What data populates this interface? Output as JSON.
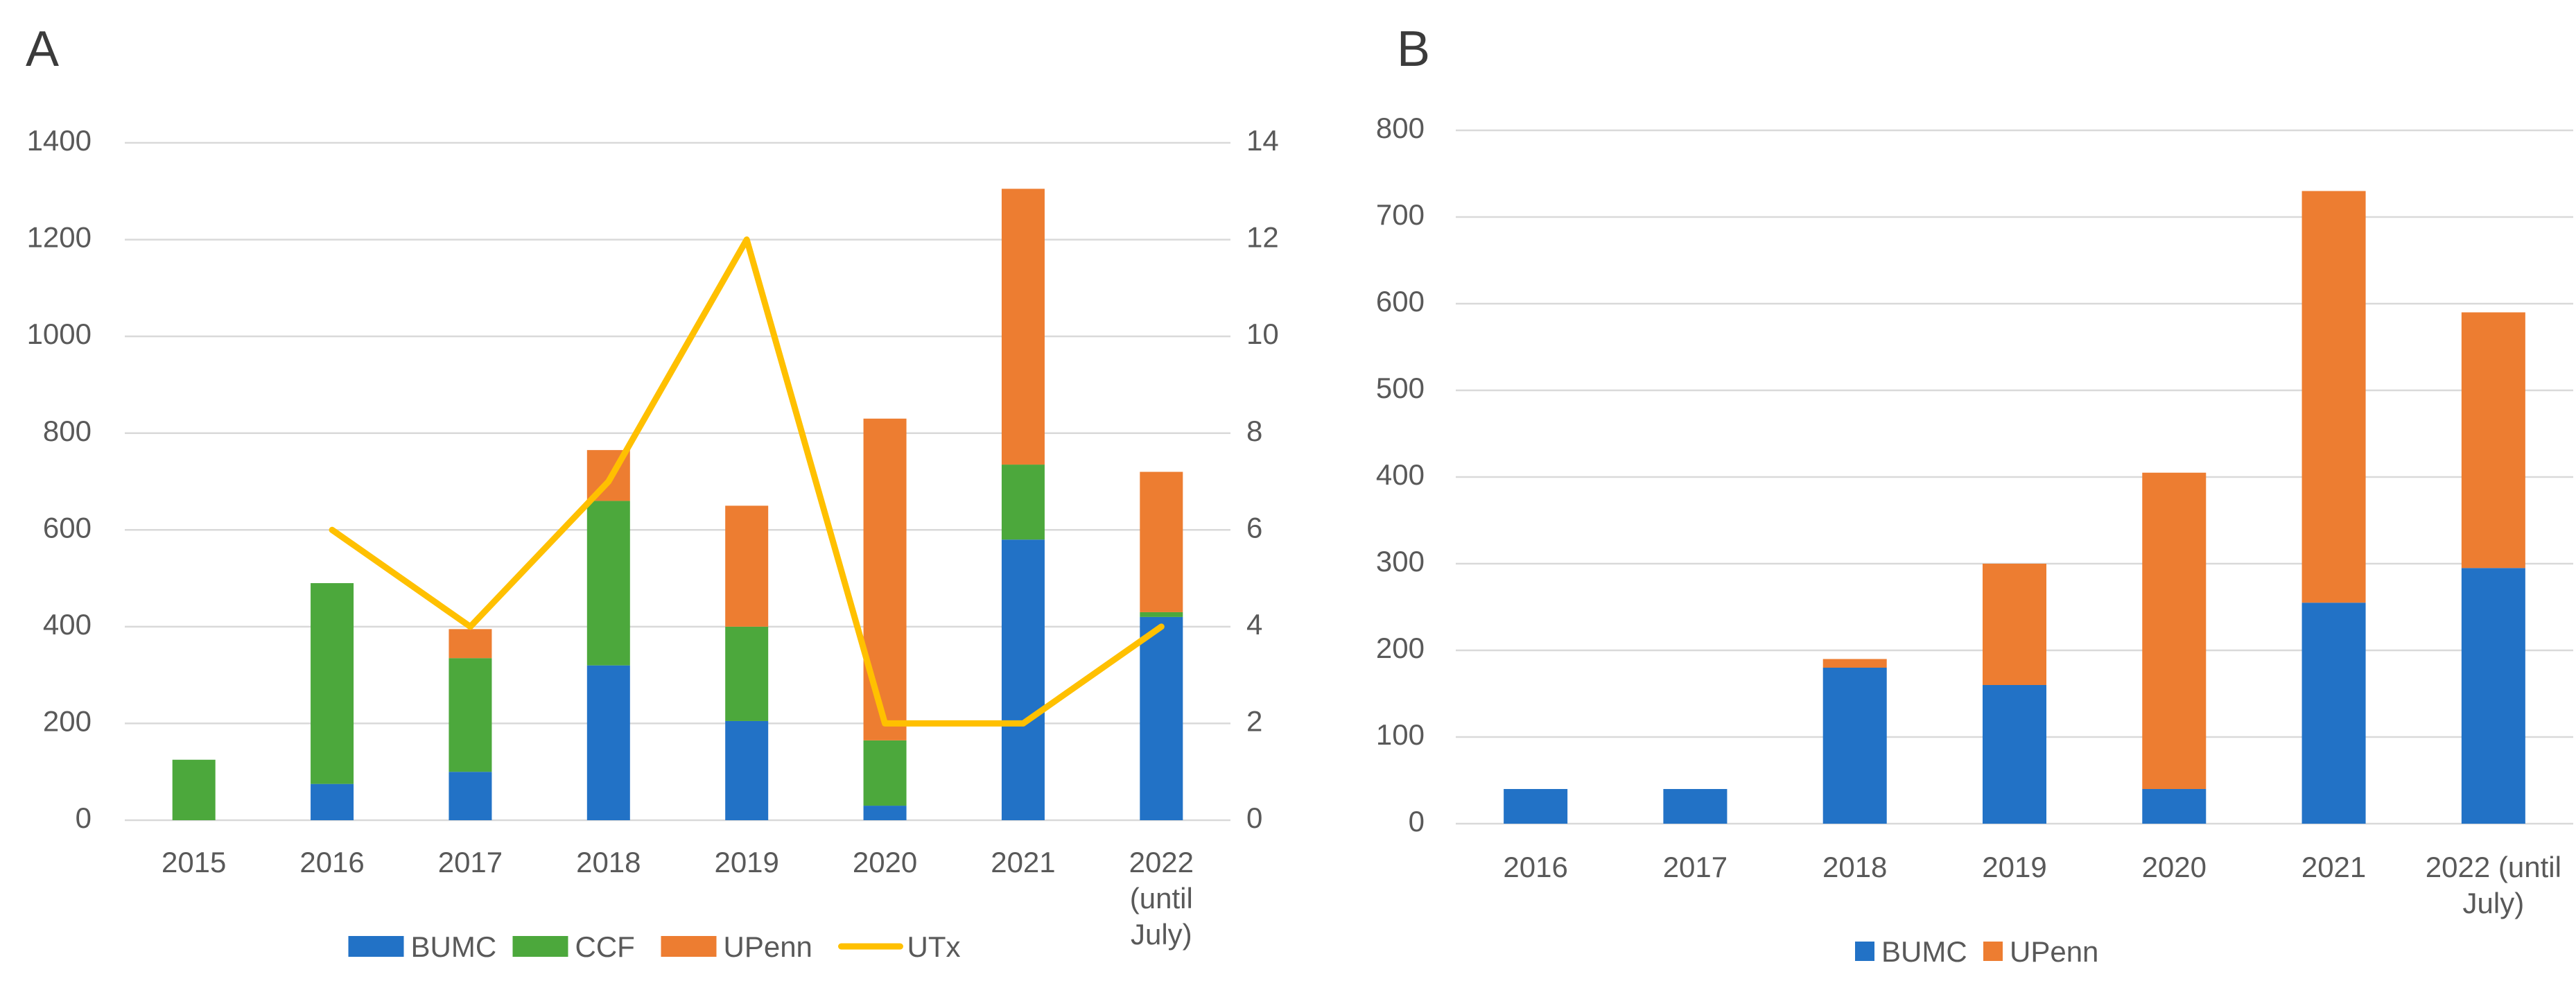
{
  "figure": {
    "background": "#ffffff",
    "gridline_color": "#d9d9d9",
    "tick_text_color": "#595959",
    "panel_letter_color": "#3b3b3b"
  },
  "chart_data": [
    {
      "panel_label": "A",
      "type": "bar",
      "subtype": "stacked-bars-with-line",
      "categories": [
        "2015",
        "2016",
        "2017",
        "2018",
        "2019",
        "2020",
        "2021",
        "2022 (until July)"
      ],
      "category_tick_lines": [
        [
          "2015"
        ],
        [
          "2016"
        ],
        [
          "2017"
        ],
        [
          "2018"
        ],
        [
          "2019"
        ],
        [
          "2020"
        ],
        [
          "2021"
        ],
        [
          "2022",
          "(until",
          "July)"
        ]
      ],
      "series": [
        {
          "name": "BUMC",
          "color": "#2272C6",
          "values": [
            0,
            75,
            100,
            320,
            205,
            30,
            580,
            420
          ]
        },
        {
          "name": "CCF",
          "color": "#4CA83C",
          "values": [
            125,
            415,
            235,
            340,
            195,
            135,
            155,
            10
          ]
        },
        {
          "name": "UPenn",
          "color": "#ED7D31",
          "values": [
            0,
            0,
            60,
            105,
            250,
            665,
            570,
            290
          ]
        }
      ],
      "line_series": {
        "name": "UTx",
        "color": "#FFC000",
        "axis": "right",
        "values": [
          null,
          6,
          4,
          7,
          12,
          2,
          2,
          4
        ]
      },
      "left_axis": {
        "min": 0,
        "max": 1400,
        "step": 200,
        "tick_labels": [
          "0",
          "200",
          "400",
          "600",
          "800",
          "1000",
          "1200",
          "1400"
        ]
      },
      "right_axis": {
        "min": 0,
        "max": 14,
        "step": 2,
        "tick_labels": [
          "0",
          "2",
          "4",
          "6",
          "8",
          "10",
          "12",
          "14"
        ]
      },
      "legend": {
        "position": "bottom-center",
        "items": [
          {
            "label": "BUMC",
            "swatch": "rect",
            "color": "#2272C6"
          },
          {
            "label": "CCF",
            "swatch": "rect",
            "color": "#4CA83C"
          },
          {
            "label": "UPenn",
            "swatch": "rect",
            "color": "#ED7D31"
          },
          {
            "label": "UTx",
            "swatch": "line",
            "color": "#FFC000"
          }
        ]
      },
      "grid": "horizontal-on"
    },
    {
      "panel_label": "B",
      "type": "bar",
      "subtype": "stacked-bars",
      "categories": [
        "2016",
        "2017",
        "2018",
        "2019",
        "2020",
        "2021",
        "2022 (until July)"
      ],
      "category_tick_lines": [
        [
          "2016"
        ],
        [
          "2017"
        ],
        [
          "2018"
        ],
        [
          "2019"
        ],
        [
          "2020"
        ],
        [
          "2021"
        ],
        [
          "2022 (until",
          "July)"
        ]
      ],
      "series": [
        {
          "name": "BUMC",
          "color": "#2272C6",
          "values": [
            40,
            40,
            180,
            160,
            40,
            255,
            295
          ]
        },
        {
          "name": "UPenn",
          "color": "#ED7D31",
          "values": [
            0,
            0,
            10,
            140,
            365,
            475,
            295
          ]
        }
      ],
      "left_axis": {
        "min": 0,
        "max": 800,
        "step": 100,
        "tick_labels": [
          "0",
          "100",
          "200",
          "300",
          "400",
          "500",
          "600",
          "700",
          "800"
        ]
      },
      "legend": {
        "position": "bottom-center",
        "items": [
          {
            "label": "BUMC",
            "swatch": "square",
            "color": "#2272C6"
          },
          {
            "label": "UPenn",
            "swatch": "square",
            "color": "#ED7D31"
          }
        ]
      },
      "grid": "horizontal-on"
    }
  ]
}
